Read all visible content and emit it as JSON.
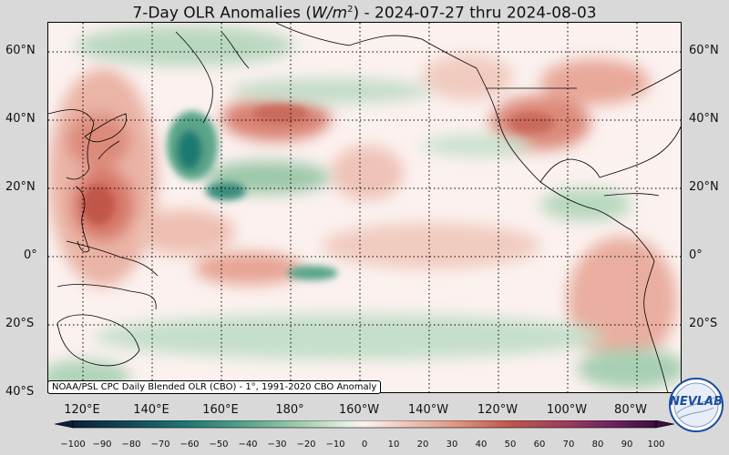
{
  "title_main": "7-Day OLR Anomalies (",
  "title_unit": "W/m",
  "title_exp": "2",
  "title_tail": ") - 2024-07-27 thru 2024-08-03",
  "lat_labels": [
    "60°N",
    "40°N",
    "20°N",
    "0°",
    "20°S",
    "40°S"
  ],
  "lon_labels": [
    "120°E",
    "140°E",
    "160°E",
    "180°",
    "160°W",
    "140°W",
    "120°W",
    "100°W",
    "80°W"
  ],
  "credit": "NOAA/PSL CPC Daily Blended OLR (CBO) - 1°, 1991-2020 CBO Anomaly",
  "colorbar_ticks": [
    "−100",
    "−90",
    "−80",
    "−70",
    "−60",
    "−50",
    "−40",
    "−30",
    "−20",
    "−10",
    "0",
    "10",
    "20",
    "30",
    "40",
    "50",
    "60",
    "70",
    "80",
    "90",
    "100"
  ],
  "logo_text": "NEVLAB",
  "colors": {
    "positive_light": "#f3d3c8",
    "positive_mid": "#e09a86",
    "positive_strong": "#c0564a",
    "negative_light": "#cfe3d2",
    "negative_mid": "#84bb98",
    "negative_strong": "#1f7a72",
    "neutral": "#fbf1ef"
  }
}
